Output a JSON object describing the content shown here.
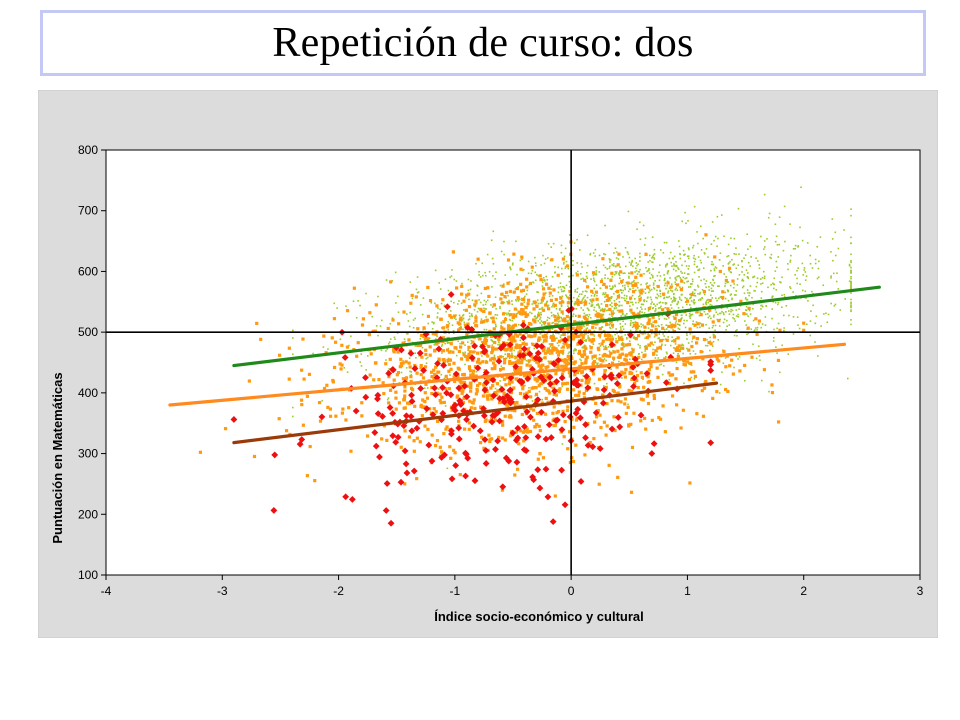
{
  "title": "Repetición de curso: dos",
  "colors": {
    "frame": "#c4c8f4",
    "panel": "#dcdcdc",
    "plot_bg": "#ffffff",
    "gridline": "#000000",
    "green": "#1f8a1a",
    "light_green": "#9ccc2a",
    "orange": "#ff8a1e",
    "dark_orange": "#ff9a10",
    "red": "#ee1010",
    "brown": "#9a3a08"
  },
  "chart_data": {
    "type": "scatter",
    "title": "Repetición de curso: dos",
    "xlabel": "Índice socio-económico y cultural",
    "ylabel": "Puntuación en Matemáticas",
    "xlim": [
      -4,
      3
    ],
    "ylim": [
      100,
      800
    ],
    "x_ticks": [
      "-4",
      "-3",
      "-2",
      "-1",
      "0",
      "1",
      "2",
      "3"
    ],
    "y_ticks": [
      "100",
      "200",
      "300",
      "400",
      "500",
      "600",
      "700",
      "800"
    ],
    "grid": false,
    "reference_lines": {
      "x": 0,
      "y": 500
    },
    "legend": "none",
    "series": [
      {
        "kind": "scatter",
        "color": "light_green",
        "marker": "dot",
        "x_range": [
          -2.4,
          2.4
        ],
        "center": [
          0.4,
          540
        ],
        "count_approx": 2400
      },
      {
        "kind": "scatter",
        "color": "dark_orange",
        "marker": "square",
        "x_range": [
          -3.4,
          2.0
        ],
        "center": [
          -0.3,
          450
        ],
        "count_approx": 1500
      },
      {
        "kind": "scatter",
        "color": "red",
        "marker": "diamond",
        "x_range": [
          -2.9,
          1.2
        ],
        "center": [
          -0.6,
          380
        ],
        "count_approx": 280
      },
      {
        "kind": "line",
        "color": "green",
        "x": [
          -2.9,
          2.65
        ],
        "y": [
          445,
          574
        ]
      },
      {
        "kind": "line",
        "color": "orange",
        "x": [
          -3.45,
          2.35
        ],
        "y": [
          380,
          480
        ]
      },
      {
        "kind": "line",
        "color": "brown",
        "x": [
          -2.9,
          1.25
        ],
        "y": [
          318,
          416
        ]
      }
    ]
  }
}
